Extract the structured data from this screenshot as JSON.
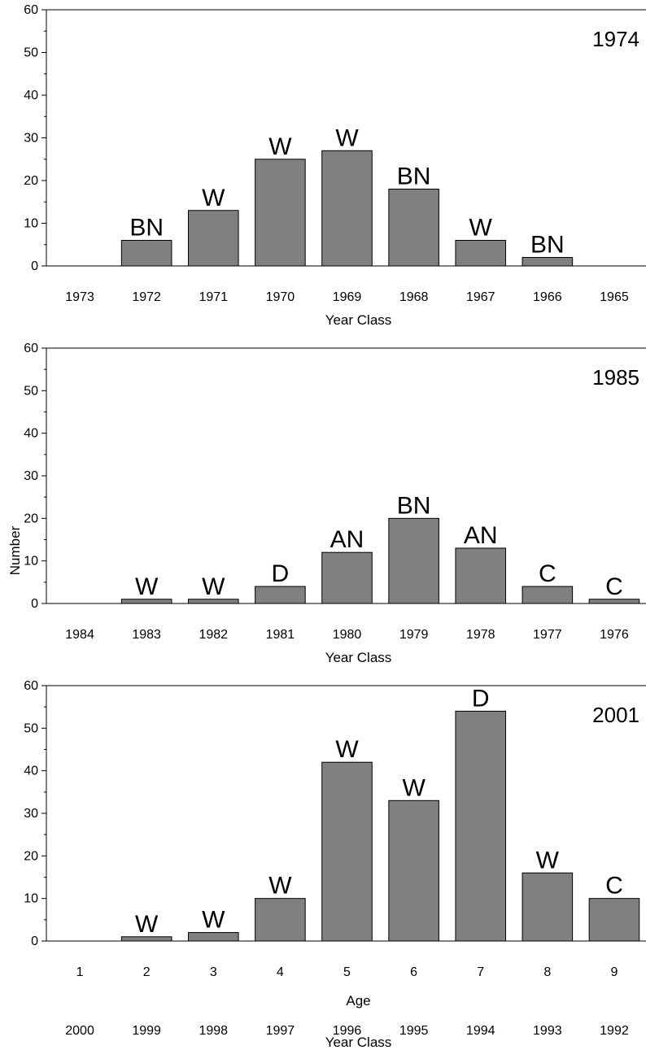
{
  "y_axis_label": "Number",
  "chart_data": [
    {
      "type": "bar",
      "title": "1974",
      "xlabel": "Year Class",
      "ylim": [
        0,
        60
      ],
      "yticks": [
        0,
        10,
        20,
        30,
        40,
        50,
        60
      ],
      "categories": [
        "1973",
        "1972",
        "1971",
        "1970",
        "1969",
        "1968",
        "1967",
        "1966",
        "1965"
      ],
      "values": [
        0,
        6,
        13,
        25,
        27,
        18,
        6,
        2,
        0
      ],
      "bar_labels": [
        "",
        "BN",
        "W",
        "W",
        "W",
        "BN",
        "W",
        "BN",
        ""
      ],
      "bar_color": "#808080"
    },
    {
      "type": "bar",
      "title": "1985",
      "xlabel": "Year Class",
      "ylim": [
        0,
        60
      ],
      "yticks": [
        0,
        10,
        20,
        30,
        40,
        50,
        60
      ],
      "categories": [
        "1984",
        "1983",
        "1982",
        "1981",
        "1980",
        "1979",
        "1978",
        "1977",
        "1976"
      ],
      "values": [
        0,
        1,
        1,
        4,
        12,
        20,
        13,
        4,
        1
      ],
      "bar_labels": [
        "",
        "W",
        "W",
        "D",
        "AN",
        "BN",
        "AN",
        "C",
        "C"
      ],
      "bar_color": "#808080"
    },
    {
      "type": "bar",
      "title": "2001",
      "xlabel": "Age",
      "xlabel2": "Year Class",
      "ylim": [
        0,
        60
      ],
      "yticks": [
        0,
        10,
        20,
        30,
        40,
        50,
        60
      ],
      "categories": [
        "1",
        "2",
        "3",
        "4",
        "5",
        "6",
        "7",
        "8",
        "9"
      ],
      "categories2": [
        "2000",
        "1999",
        "1998",
        "1997",
        "1996",
        "1995",
        "1994",
        "1993",
        "1992"
      ],
      "values": [
        0,
        1,
        2,
        10,
        42,
        33,
        54,
        16,
        10
      ],
      "bar_labels": [
        "",
        "W",
        "W",
        "W",
        "W",
        "W",
        "D",
        "W",
        "C"
      ],
      "bar_color": "#808080"
    }
  ]
}
